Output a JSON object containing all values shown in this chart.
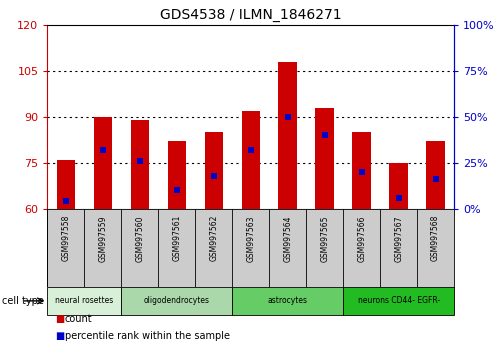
{
  "title": "GDS4538 / ILMN_1846271",
  "samples": [
    "GSM997558",
    "GSM997559",
    "GSM997560",
    "GSM997561",
    "GSM997562",
    "GSM997563",
    "GSM997564",
    "GSM997565",
    "GSM997566",
    "GSM997567",
    "GSM997568"
  ],
  "count_values": [
    76,
    90,
    89,
    82,
    85,
    92,
    108,
    93,
    85,
    75,
    82
  ],
  "percentile_values": [
    4,
    32,
    26,
    10,
    18,
    32,
    50,
    40,
    20,
    6,
    16
  ],
  "ylim_left": [
    60,
    120
  ],
  "ylim_right": [
    0,
    100
  ],
  "yticks_left": [
    60,
    75,
    90,
    105,
    120
  ],
  "yticks_right": [
    0,
    25,
    50,
    75,
    100
  ],
  "ytick_labels_right": [
    "0%",
    "25%",
    "50%",
    "75%",
    "100%"
  ],
  "cell_types": [
    {
      "label": "neural rosettes",
      "span": [
        0,
        1
      ],
      "color": "#d8f0d8"
    },
    {
      "label": "oligodendrocytes",
      "span": [
        2,
        4
      ],
      "color": "#aad8aa"
    },
    {
      "label": "astrocytes",
      "span": [
        5,
        7
      ],
      "color": "#66cc66"
    },
    {
      "label": "neurons CD44- EGFR-",
      "span": [
        8,
        10
      ],
      "color": "#22bb22"
    }
  ],
  "bar_color": "#cc0000",
  "marker_color": "#0000cc",
  "grid_color": "#000000",
  "left_tick_color": "#cc0000",
  "right_tick_color": "#0000cc",
  "background_plot": "#ffffff",
  "background_sample": "#cccccc",
  "legend_items": [
    {
      "label": "count",
      "color": "#cc0000"
    },
    {
      "label": "percentile rank within the sample",
      "color": "#0000cc"
    }
  ]
}
